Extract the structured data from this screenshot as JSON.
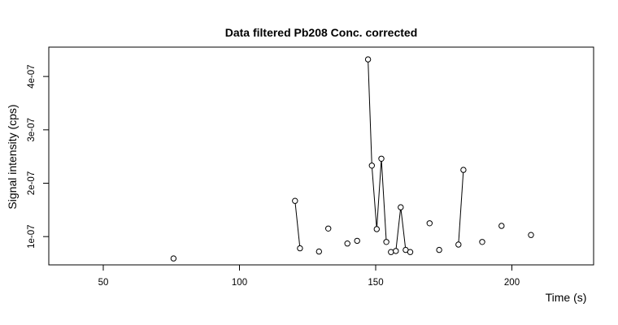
{
  "chart_data": {
    "type": "scatter",
    "title": "Data filtered Pb208 Conc. corrected",
    "xlabel": "Time (s)",
    "ylabel": "Signal intensity (cps)",
    "xlim": [
      30,
      230
    ],
    "ylim": [
      4.7e-08,
      4.55e-07
    ],
    "x_ticks": [
      50,
      100,
      150,
      200
    ],
    "x_tick_labels": [
      "50",
      "100",
      "150",
      "200"
    ],
    "y_ticks": [
      1e-07,
      2e-07,
      3e-07,
      4e-07
    ],
    "y_tick_labels": [
      "1e-07",
      "2e-07",
      "3e-07",
      "4e-07"
    ],
    "grid": false,
    "legend": "none",
    "points": [
      {
        "x": 75.8,
        "y": 5.9e-08
      },
      {
        "x": 120.4,
        "y": 1.67e-07
      },
      {
        "x": 122.2,
        "y": 7.8e-08
      },
      {
        "x": 129.2,
        "y": 7.2e-08
      },
      {
        "x": 132.6,
        "y": 1.15e-07
      },
      {
        "x": 139.6,
        "y": 8.7e-08
      },
      {
        "x": 143.2,
        "y": 9.2e-08
      },
      {
        "x": 147.2,
        "y": 4.32e-07
      },
      {
        "x": 148.6,
        "y": 2.33e-07
      },
      {
        "x": 150.4,
        "y": 1.14e-07
      },
      {
        "x": 152.1,
        "y": 2.46e-07
      },
      {
        "x": 153.9,
        "y": 9e-08
      },
      {
        "x": 155.6,
        "y": 7.1e-08
      },
      {
        "x": 157.4,
        "y": 7.3e-08
      },
      {
        "x": 159.2,
        "y": 1.55e-07
      },
      {
        "x": 161,
        "y": 7.5e-08
      },
      {
        "x": 162.7,
        "y": 7.1e-08
      },
      {
        "x": 169.8,
        "y": 1.25e-07
      },
      {
        "x": 173.3,
        "y": 7.5e-08
      },
      {
        "x": 180.4,
        "y": 8.5e-08
      },
      {
        "x": 182.2,
        "y": 2.25e-07
      },
      {
        "x": 189.1,
        "y": 9e-08
      },
      {
        "x": 196.2,
        "y": 1.2e-07
      },
      {
        "x": 207,
        "y": 1.03e-07
      }
    ],
    "segments": [
      [
        [
          120.4,
          1.67e-07
        ],
        [
          122.2,
          7.8e-08
        ]
      ],
      [
        [
          147.2,
          4.32e-07
        ],
        [
          148.6,
          2.33e-07
        ],
        [
          150.4,
          1.14e-07
        ],
        [
          152.1,
          2.46e-07
        ],
        [
          153.9,
          9e-08
        ]
      ],
      [
        [
          157.4,
          7.3e-08
        ],
        [
          159.2,
          1.55e-07
        ],
        [
          161,
          7.5e-08
        ]
      ],
      [
        [
          180.4,
          8.5e-08
        ],
        [
          182.2,
          2.25e-07
        ]
      ]
    ]
  }
}
